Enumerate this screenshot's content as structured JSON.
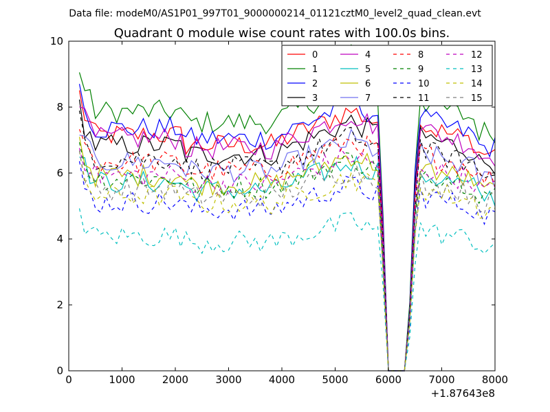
{
  "suptitle": "Data file: modeM0/AS1P01_997T01_9000000214_01121cztM0_level2_quad_clean.evt",
  "title": "Quadrant 0 module wise count rates with 100.0s bins.",
  "x_offset_label": "+1.87643e8",
  "x_tick_labels": [
    "0",
    "1000",
    "2000",
    "3000",
    "4000",
    "5000",
    "6000",
    "7000",
    "8000"
  ],
  "y_tick_labels": [
    "0",
    "2",
    "4",
    "6",
    "8",
    "10"
  ],
  "chart_data": {
    "type": "line",
    "title": "Quadrant 0 module wise count rates with 100.0s bins.",
    "xlabel": "",
    "ylabel": "",
    "x_offset": 187643000,
    "xlim": [
      0,
      8000
    ],
    "ylim": [
      0,
      10
    ],
    "x_ticks": [
      0,
      1000,
      2000,
      3000,
      4000,
      5000,
      6000,
      7000,
      8000
    ],
    "y_ticks": [
      0,
      2,
      4,
      6,
      8,
      10
    ],
    "legend_position": "top-right",
    "legend_columns": 4,
    "x_start": 200,
    "x_step": 100,
    "gap_note": "rates drop to 0 between x~5950 and x~6350",
    "series": [
      {
        "name": "0",
        "color": "#ff0000",
        "dash": "solid",
        "base": 7.0
      },
      {
        "name": "1",
        "color": "#008000",
        "dash": "solid",
        "base": 7.7
      },
      {
        "name": "2",
        "color": "#0000ff",
        "dash": "solid",
        "base": 7.2
      },
      {
        "name": "3",
        "color": "#000000",
        "dash": "solid",
        "base": 6.7
      },
      {
        "name": "4",
        "color": "#bf00bf",
        "dash": "solid",
        "base": 6.9
      },
      {
        "name": "5",
        "color": "#00bfbf",
        "dash": "solid",
        "base": 5.6
      },
      {
        "name": "6",
        "color": "#bfbf00",
        "dash": "solid",
        "base": 5.8
      },
      {
        "name": "7",
        "color": "#7070f0",
        "dash": "solid",
        "base": 6.2
      },
      {
        "name": "8",
        "color": "#ff0000",
        "dash": "dashed",
        "base": 6.2
      },
      {
        "name": "9",
        "color": "#008000",
        "dash": "dashed",
        "base": 5.7
      },
      {
        "name": "10",
        "color": "#0000ff",
        "dash": "dashed",
        "base": 5.0
      },
      {
        "name": "11",
        "color": "#000000",
        "dash": "dashed",
        "base": 6.3
      },
      {
        "name": "12",
        "color": "#bf00bf",
        "dash": "dashed",
        "base": 5.8
      },
      {
        "name": "13",
        "color": "#00bfbf",
        "dash": "dashed",
        "base": 4.0
      },
      {
        "name": "14",
        "color": "#bfbf00",
        "dash": "dashed",
        "base": 5.2
      },
      {
        "name": "15",
        "color": "#808080",
        "dash": "dashed",
        "base": 5.4
      }
    ]
  }
}
